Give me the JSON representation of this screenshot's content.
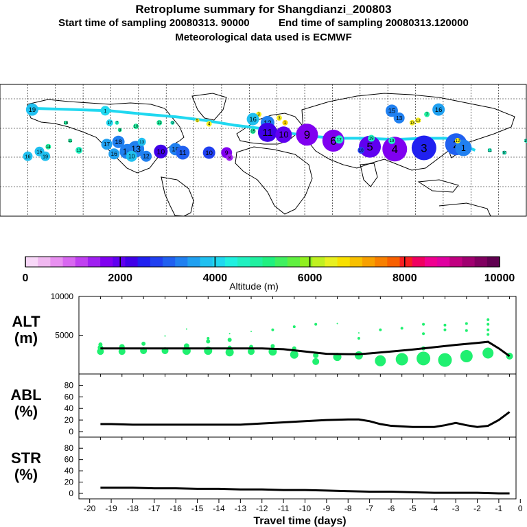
{
  "header": {
    "title": "Retroplume summary for Shangdianzi_200803",
    "start_label": "Start time of sampling 20080313. 90000",
    "end_label": "End time of sampling 20080313.120000",
    "met_label": "Meteorological data used is ECMWF"
  },
  "colorbar": {
    "tick_labels": [
      "0",
      "2000",
      "4000",
      "6000",
      "8000",
      "10000"
    ],
    "label": "Altitude (m)",
    "colors": [
      "#f8d8f8",
      "#f0b8f0",
      "#e890f0",
      "#d868f0",
      "#c040f0",
      "#a020f0",
      "#8000f0",
      "#6000f0",
      "#4000e8",
      "#2020f0",
      "#2040f0",
      "#2060f0",
      "#2080f0",
      "#20a0f0",
      "#20c0f0",
      "#20d8f0",
      "#20f0e0",
      "#20f0c0",
      "#20f0a0",
      "#20f080",
      "#40f060",
      "#60f040",
      "#90f020",
      "#c0f020",
      "#e8f020",
      "#f8e000",
      "#f8c000",
      "#f8a000",
      "#f88000",
      "#f86000",
      "#f82020",
      "#f00060",
      "#f00090",
      "#e000a0",
      "#c00080",
      "#a00070",
      "#800060",
      "#600050"
    ]
  },
  "map": {
    "trajectory_color": "#20d8f0",
    "points": [
      {
        "label": "19",
        "lon": -168,
        "lat": 69,
        "r": 9,
        "color": "#20c0f0"
      },
      {
        "label": "1",
        "lon": -118,
        "lat": 68,
        "r": 7,
        "color": "#20d8f0"
      },
      {
        "label": "3",
        "lon": -13,
        "lat": 65,
        "r": 4,
        "color": "#f8f020"
      },
      {
        "label": "3",
        "lon": 1,
        "lat": 62,
        "r": 4,
        "color": "#f8f020"
      },
      {
        "label": "16",
        "lon": -17,
        "lat": 61,
        "r": 9,
        "color": "#20c0f0"
      },
      {
        "label": "12",
        "lon": -7,
        "lat": 58,
        "r": 10,
        "color": "#2080f0"
      },
      {
        "label": "11",
        "lon": -7,
        "lat": 50,
        "r": 14,
        "color": "#4000e8"
      },
      {
        "label": "10",
        "lon": 4,
        "lat": 48,
        "r": 12,
        "color": "#6000f0"
      },
      {
        "label": "9",
        "lon": 20,
        "lat": 48,
        "r": 16,
        "color": "#8000f0"
      },
      {
        "label": "6",
        "lon": 38,
        "lat": 43,
        "r": 16,
        "color": "#8000f0"
      },
      {
        "label": "5",
        "lon": 63,
        "lat": 38,
        "r": 16,
        "color": "#6000f0"
      },
      {
        "label": "4",
        "lon": 80,
        "lat": 36,
        "r": 18,
        "color": "#8000f0"
      },
      {
        "label": "3",
        "lon": 100,
        "lat": 37,
        "r": 18,
        "color": "#2020f0"
      },
      {
        "label": "2",
        "lon": 122,
        "lat": 40,
        "r": 16,
        "color": "#2060f0"
      },
      {
        "label": "1",
        "lon": 127,
        "lat": 37,
        "r": 12,
        "color": "#2080f0"
      },
      {
        "label": "11",
        "lon": 145,
        "lat": 35,
        "r": 3,
        "color": "#20f0c0"
      },
      {
        "label": "10",
        "lon": 155,
        "lat": 33,
        "r": 3,
        "color": "#20f0c0"
      },
      {
        "label": "15",
        "lon": 78,
        "lat": 68,
        "r": 9,
        "color": "#2080f0"
      },
      {
        "label": "16",
        "lon": 110,
        "lat": 69,
        "r": 9,
        "color": "#20a0f0"
      },
      {
        "label": "13",
        "lon": 83,
        "lat": 62,
        "r": 8,
        "color": "#2080f0"
      },
      {
        "label": "19",
        "lon": 78,
        "lat": 43,
        "r": 5,
        "color": "#20f0c0"
      },
      {
        "label": "18",
        "lon": -145,
        "lat": 58,
        "r": 3,
        "color": "#20f0a0"
      },
      {
        "label": "17",
        "lon": -115,
        "lat": 58,
        "r": 5,
        "color": "#20d8f0"
      },
      {
        "label": "11",
        "lon": -142,
        "lat": 43,
        "r": 3,
        "color": "#20f0a0"
      },
      {
        "label": "14",
        "lon": -157,
        "lat": 38,
        "r": 4,
        "color": "#20f0a0"
      },
      {
        "label": "15",
        "lon": -163,
        "lat": 34,
        "r": 7,
        "color": "#20c0f0"
      },
      {
        "label": "16",
        "lon": -171,
        "lat": 30,
        "r": 7,
        "color": "#20c0f0"
      },
      {
        "label": "19",
        "lon": -159,
        "lat": 30,
        "r": 7,
        "color": "#20c0f0"
      },
      {
        "label": "13",
        "lon": -136,
        "lat": 35,
        "r": 5,
        "color": "#20f0c0"
      },
      {
        "label": "17",
        "lon": -117,
        "lat": 40,
        "r": 8,
        "color": "#20a0f0"
      },
      {
        "label": "18",
        "lon": -109,
        "lat": 42,
        "r": 9,
        "color": "#2080f0"
      },
      {
        "label": "16",
        "lon": -112,
        "lat": 32,
        "r": 8,
        "color": "#20a0f0"
      },
      {
        "label": "15",
        "lon": -103,
        "lat": 34,
        "r": 11,
        "color": "#2080f0"
      },
      {
        "label": "13",
        "lon": -97,
        "lat": 36,
        "r": 12,
        "color": "#2080f0"
      },
      {
        "label": "10",
        "lon": -100,
        "lat": 30,
        "r": 8,
        "color": "#20c0f0"
      },
      {
        "label": "13",
        "lon": -93,
        "lat": 42,
        "r": 6,
        "color": "#20c0f0"
      },
      {
        "label": "12",
        "lon": -90,
        "lat": 30,
        "r": 8,
        "color": "#2080f0"
      },
      {
        "label": "10",
        "lon": -80,
        "lat": 34,
        "r": 10,
        "color": "#4000e8"
      },
      {
        "label": "16",
        "lon": -70,
        "lat": 36,
        "r": 9,
        "color": "#2080f0"
      },
      {
        "label": "11",
        "lon": -65,
        "lat": 33,
        "r": 10,
        "color": "#2060f0"
      },
      {
        "label": "10",
        "lon": -47,
        "lat": 33,
        "r": 9,
        "color": "#2040f0"
      },
      {
        "label": "9",
        "lon": -35,
        "lat": 33,
        "r": 8,
        "color": "#8000f0"
      },
      {
        "label": "8",
        "lon": -33,
        "lat": 29,
        "r": 5,
        "color": "#a020f0"
      },
      {
        "label": "8",
        "lon": -108,
        "lat": 52,
        "r": 3,
        "color": "#20f0a0"
      },
      {
        "label": "4",
        "lon": -47,
        "lat": 57,
        "r": 4,
        "color": "#f8f020"
      },
      {
        "label": "9",
        "lon": -72,
        "lat": 58,
        "r": 3,
        "color": "#20f0c0"
      },
      {
        "label": "12",
        "lon": -81,
        "lat": 58,
        "r": 4,
        "color": "#20f0a0"
      },
      {
        "label": "15",
        "lon": -17,
        "lat": 51,
        "r": 4,
        "color": "#20f0a0"
      },
      {
        "label": "1",
        "lon": 5,
        "lat": 58,
        "r": 4,
        "color": "#f8d000"
      },
      {
        "label": "10",
        "lon": -97,
        "lat": 55,
        "r": 4,
        "color": "#20f0a0"
      },
      {
        "label": "10",
        "lon": 57,
        "lat": 35,
        "r": 5,
        "color": "#2040f0"
      },
      {
        "label": "12",
        "lon": 42,
        "lat": 44,
        "r": 6,
        "color": "#20f0c0"
      },
      {
        "label": "19",
        "lon": 64,
        "lat": 45,
        "r": 5,
        "color": "#20f0c0"
      },
      {
        "label": "7",
        "lon": 102,
        "lat": 65,
        "r": 4,
        "color": "#20f0a0"
      },
      {
        "label": "12",
        "lon": 96,
        "lat": 60,
        "r": 4,
        "color": "#f8f020"
      },
      {
        "label": "13",
        "lon": 92,
        "lat": 58,
        "r": 4,
        "color": "#f8f020"
      },
      {
        "label": "15",
        "lon": 170,
        "lat": 43,
        "r": 3,
        "color": "#20f0c0"
      },
      {
        "label": "19",
        "lon": 172,
        "lat": 30,
        "r": 3,
        "color": "#20f0c0"
      },
      {
        "label": "12",
        "lon": 123,
        "lat": 43,
        "r": 4,
        "color": "#f8f020"
      },
      {
        "label": "7",
        "lon": -110,
        "lat": 58,
        "r": 3,
        "color": "#20f0c0"
      },
      {
        "label": "5",
        "lon": -55,
        "lat": 60,
        "r": 3,
        "color": "#f8f020"
      }
    ]
  },
  "chart_data": [
    {
      "type": "scatter+line",
      "panel": "ALT",
      "ylabel_line1": "ALT",
      "ylabel_line2": "(m)",
      "ylim": [
        0,
        10000
      ],
      "y_ticks": [
        "10000",
        "5000"
      ],
      "y_tick_values": [
        10000,
        5000
      ],
      "xlim": [
        -20.5,
        -0.2
      ],
      "median_altitude": {
        "x": [
          -19.5,
          -19,
          -18,
          -17,
          -16,
          -15,
          -14,
          -13,
          -12,
          -11,
          -10,
          -9,
          -8,
          -7.5,
          -7,
          -6,
          -5,
          -4,
          -3,
          -2,
          -1.5,
          -1,
          -0.5
        ],
        "y": [
          3300,
          3300,
          3300,
          3300,
          3300,
          3300,
          3300,
          3300,
          3300,
          3200,
          2900,
          2600,
          2550,
          2550,
          2650,
          2900,
          3150,
          3450,
          3750,
          4000,
          4150,
          3300,
          2300
        ]
      },
      "bubbles": [
        {
          "x": -19.5,
          "y": 2900,
          "size": 5
        },
        {
          "x": -19.5,
          "y": 3400,
          "size": 4
        },
        {
          "x": -19.5,
          "y": 3800,
          "size": 3
        },
        {
          "x": -18.5,
          "y": 2900,
          "size": 5
        },
        {
          "x": -18.5,
          "y": 3500,
          "size": 4
        },
        {
          "x": -17.5,
          "y": 3000,
          "size": 5
        },
        {
          "x": -17.5,
          "y": 3900,
          "size": 3
        },
        {
          "x": -16.5,
          "y": 3000,
          "size": 5
        },
        {
          "x": -16.5,
          "y": 4900,
          "size": 1
        },
        {
          "x": -15.5,
          "y": 3000,
          "size": 6
        },
        {
          "x": -15.5,
          "y": 3600,
          "size": 4
        },
        {
          "x": -15.5,
          "y": 5800,
          "size": 1
        },
        {
          "x": -14.5,
          "y": 3000,
          "size": 6
        },
        {
          "x": -14.5,
          "y": 4200,
          "size": 3
        },
        {
          "x": -14.5,
          "y": 4600,
          "size": 2
        },
        {
          "x": -13.5,
          "y": 2800,
          "size": 6
        },
        {
          "x": -13.5,
          "y": 3400,
          "size": 3
        },
        {
          "x": -13.5,
          "y": 4400,
          "size": 3
        },
        {
          "x": -13.5,
          "y": 5200,
          "size": 1
        },
        {
          "x": -12.5,
          "y": 2900,
          "size": 5
        },
        {
          "x": -12.5,
          "y": 3500,
          "size": 3
        },
        {
          "x": -12.5,
          "y": 5500,
          "size": 1
        },
        {
          "x": -11.5,
          "y": 2900,
          "size": 6
        },
        {
          "x": -11.5,
          "y": 3600,
          "size": 3
        },
        {
          "x": -11.5,
          "y": 5700,
          "size": 2
        },
        {
          "x": -10.5,
          "y": 2500,
          "size": 6
        },
        {
          "x": -10.5,
          "y": 3300,
          "size": 3
        },
        {
          "x": -10.5,
          "y": 6100,
          "size": 2
        },
        {
          "x": -9.5,
          "y": 1600,
          "size": 5
        },
        {
          "x": -9.5,
          "y": 2400,
          "size": 4
        },
        {
          "x": -9.5,
          "y": 6400,
          "size": 2
        },
        {
          "x": -8.5,
          "y": 2200,
          "size": 6
        },
        {
          "x": -8.5,
          "y": 6500,
          "size": 1
        },
        {
          "x": -7.5,
          "y": 2400,
          "size": 6
        },
        {
          "x": -7.5,
          "y": 4600,
          "size": 2
        },
        {
          "x": -7.5,
          "y": 5300,
          "size": 1
        },
        {
          "x": -6.5,
          "y": 1700,
          "size": 8
        },
        {
          "x": -6.5,
          "y": 5700,
          "size": 2
        },
        {
          "x": -5.5,
          "y": 1900,
          "size": 9
        },
        {
          "x": -5.5,
          "y": 5900,
          "size": 2
        },
        {
          "x": -4.5,
          "y": 2000,
          "size": 10
        },
        {
          "x": -4.5,
          "y": 3300,
          "size": 3
        },
        {
          "x": -4.5,
          "y": 5200,
          "size": 2
        },
        {
          "x": -4.5,
          "y": 6400,
          "size": 2
        },
        {
          "x": -3.5,
          "y": 1800,
          "size": 10
        },
        {
          "x": -3.5,
          "y": 5700,
          "size": 2
        },
        {
          "x": -3.5,
          "y": 6300,
          "size": 2
        },
        {
          "x": -2.5,
          "y": 2300,
          "size": 9
        },
        {
          "x": -2.5,
          "y": 5600,
          "size": 2
        },
        {
          "x": -2.5,
          "y": 6500,
          "size": 2
        },
        {
          "x": -1.5,
          "y": 2700,
          "size": 8
        },
        {
          "x": -1.5,
          "y": 5100,
          "size": 2
        },
        {
          "x": -1.5,
          "y": 5700,
          "size": 2
        },
        {
          "x": -1.5,
          "y": 6400,
          "size": 2
        },
        {
          "x": -1.5,
          "y": 7000,
          "size": 2
        },
        {
          "x": -0.5,
          "y": 2300,
          "size": 5
        }
      ]
    },
    {
      "type": "line",
      "panel": "ABL",
      "ylabel_line1": "ABL",
      "ylabel_line2": "(%)",
      "ylim": [
        0,
        90
      ],
      "y_ticks": [
        "80",
        "60",
        "40",
        "20",
        "0"
      ],
      "y_tick_values": [
        80,
        60,
        40,
        20,
        0
      ],
      "xlim": [
        -20.5,
        -0.2
      ],
      "x": [
        -19.5,
        -19,
        -18,
        -17,
        -16,
        -15,
        -14,
        -13,
        -12,
        -11,
        -10,
        -9,
        -8,
        -7.5,
        -7,
        -6.5,
        -6,
        -5,
        -4.5,
        -4,
        -3.5,
        -3,
        -2.5,
        -2,
        -1.5,
        -1,
        -0.5
      ],
      "y": [
        13,
        13,
        12,
        12,
        12,
        12,
        12,
        12,
        14,
        16,
        18,
        20,
        21,
        21,
        18,
        13,
        10,
        8,
        8,
        8,
        11,
        15,
        11,
        8,
        10,
        20,
        34
      ]
    },
    {
      "type": "line",
      "panel": "STR",
      "ylabel_line1": "STR",
      "ylabel_line2": "(%)",
      "ylim": [
        0,
        90
      ],
      "y_ticks": [
        "80",
        "60",
        "40",
        "20",
        "0"
      ],
      "y_tick_values": [
        80,
        60,
        40,
        20,
        0
      ],
      "xlim": [
        -20.5,
        -0.2
      ],
      "x": [
        -19.5,
        -18,
        -17,
        -16,
        -15,
        -14,
        -13,
        -12,
        -11,
        -10,
        -9,
        -8,
        -7,
        -6,
        -5,
        -4,
        -3,
        -2,
        -1,
        -0.5
      ],
      "y": [
        10,
        10,
        9,
        9,
        8,
        8,
        7,
        7,
        6,
        6,
        5,
        4,
        3,
        3,
        2,
        1,
        1,
        1,
        0,
        0
      ]
    }
  ],
  "x_axis": {
    "tick_labels": [
      "-20",
      "-19",
      "-18",
      "-17",
      "-16",
      "-15",
      "-14",
      "-13",
      "-12",
      "-11",
      "-10",
      "-9",
      "-8",
      "-7",
      "-6",
      "-5",
      "-4",
      "-3",
      "-2",
      "-1",
      "0"
    ],
    "label": "Travel time (days)"
  }
}
